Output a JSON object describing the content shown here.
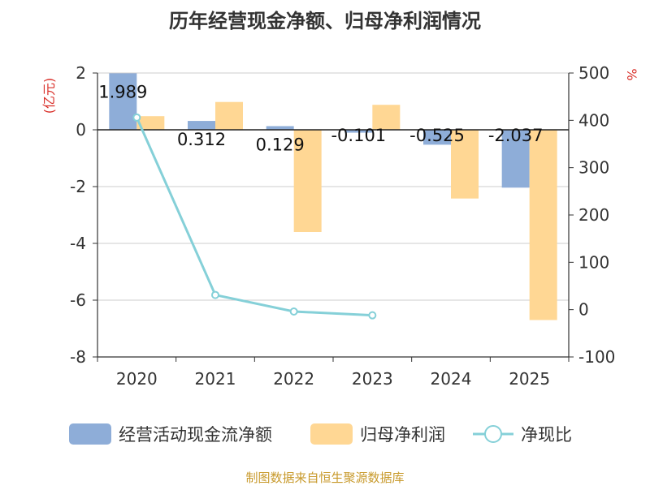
{
  "chart_data": {
    "type": "bar",
    "title": "历年经营现金净额、归母净利润情况",
    "categories": [
      "2020",
      "2021",
      "2022",
      "2023",
      "2024",
      "2025"
    ],
    "left_axis": {
      "label": "(亿元)",
      "ylim": [
        -8,
        2
      ],
      "ticks": [
        2,
        0,
        -2,
        -4,
        -6,
        -8
      ],
      "tick_labels": [
        "2",
        "0",
        "-2",
        "-4",
        "-6",
        "-8"
      ]
    },
    "right_axis": {
      "label": "%",
      "ylim": [
        -100,
        500
      ],
      "ticks": [
        500,
        400,
        300,
        200,
        100,
        0,
        -100
      ],
      "tick_labels": [
        "500",
        "400",
        "300",
        "200",
        "100",
        "0",
        "-100"
      ]
    },
    "series": [
      {
        "name": "经营活动现金流净额",
        "type": "bar",
        "axis": "left",
        "color": "#8eadd8",
        "values": [
          1.989,
          0.312,
          0.129,
          -0.101,
          -0.525,
          -2.037
        ],
        "labels": [
          "1.989",
          "0.312",
          "0.129",
          "-0.101",
          "-0.525",
          "-2.037"
        ]
      },
      {
        "name": "归母净利润",
        "type": "bar",
        "axis": "left",
        "color": "#ffd794",
        "values": [
          0.48,
          0.98,
          -3.6,
          0.88,
          -2.42,
          -6.7
        ]
      },
      {
        "name": "净现比",
        "type": "line",
        "axis": "right",
        "color": "#85d0d8",
        "values": [
          406,
          31,
          -4,
          -12,
          null,
          null
        ]
      }
    ],
    "grid": true,
    "legend_position": "bottom"
  },
  "footer": "制图数据来自恒生聚源数据库"
}
